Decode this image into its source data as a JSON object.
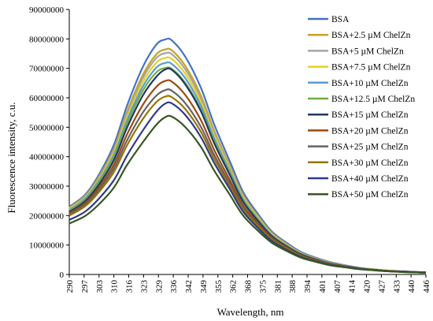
{
  "chart_data": {
    "type": "line",
    "title": "",
    "xlabel": "Wavelength, nm",
    "ylabel": "Fluorescence intensity,  c.u.",
    "ylim": [
      0,
      90000000
    ],
    "xlim": [
      290,
      450
    ],
    "y_ticks": [
      "0",
      "10000000",
      "20000000",
      "30000000",
      "40000000",
      "50000000",
      "60000000",
      "70000000",
      "80000000",
      "90000000"
    ],
    "x_ticks": [
      "290",
      "297",
      "303",
      "310",
      "316",
      "323",
      "329",
      "336",
      "342",
      "349",
      "355",
      "362",
      "368",
      "375",
      "381",
      "388",
      "394",
      "401",
      "407",
      "414",
      "420",
      "427",
      "433",
      "440",
      "446"
    ],
    "grid": false,
    "legend_position": "right",
    "x": [
      290,
      297,
      303,
      310,
      316,
      323,
      329,
      333,
      336,
      342,
      349,
      355,
      362,
      368,
      375,
      381,
      388,
      394,
      401,
      407,
      414,
      420,
      427,
      433,
      440,
      446,
      450
    ],
    "series": [
      {
        "name": "BSA",
        "color": "#4472c4",
        "values": [
          23000000,
          27000000,
          33500000,
          44000000,
          57500000,
          70500000,
          78000000,
          79800000,
          79500000,
          74000000,
          63500000,
          51000000,
          38500000,
          28000000,
          20200000,
          14500000,
          10500000,
          7600000,
          5600000,
          4200000,
          3100000,
          2300000,
          1700000,
          1300000,
          1000000,
          800000,
          700000
        ]
      },
      {
        "name": "BSA+2.5 µM ChelZn",
        "color": "#c9a227",
        "values": [
          22700000,
          26600000,
          32800000,
          42700000,
          55500000,
          67800000,
          74700000,
          76400000,
          76100000,
          70900000,
          60900000,
          48900000,
          37000000,
          27000000,
          19500000,
          14000000,
          10100000,
          7300000,
          5400000,
          4000000,
          3000000,
          2200000,
          1700000,
          1300000,
          1000000,
          800000,
          700000
        ]
      },
      {
        "name": "BSA+5 µM ChelZn",
        "color": "#a5a5a5",
        "values": [
          22400000,
          26300000,
          32300000,
          42000000,
          54600000,
          66700000,
          73500000,
          75100000,
          74800000,
          69700000,
          59900000,
          48200000,
          36500000,
          26600000,
          19200000,
          13800000,
          10000000,
          7200000,
          5300000,
          4000000,
          3000000,
          2200000,
          1700000,
          1300000,
          1000000,
          800000,
          700000
        ]
      },
      {
        "name": "BSA+7.5 µM ChelZn",
        "color": "#e5d21c",
        "values": [
          22200000,
          26000000,
          31900000,
          41300000,
          53500000,
          65300000,
          71900000,
          73500000,
          73200000,
          68200000,
          58700000,
          47200000,
          35800000,
          26100000,
          18900000,
          13600000,
          9800000,
          7100000,
          5200000,
          3900000,
          2900000,
          2200000,
          1700000,
          1300000,
          1000000,
          800000,
          700000
        ]
      },
      {
        "name": "BSA+10 µM ChelZn",
        "color": "#5b9bd5",
        "values": [
          21900000,
          25700000,
          31500000,
          40600000,
          52500000,
          63800000,
          70200000,
          71800000,
          71500000,
          66700000,
          57400000,
          46200000,
          35100000,
          25600000,
          18500000,
          13300000,
          9600000,
          7000000,
          5100000,
          3800000,
          2900000,
          2200000,
          1600000,
          1200000,
          1000000,
          800000,
          700000
        ]
      },
      {
        "name": "BSA+12.5 µM ChelZn",
        "color": "#70ad47",
        "values": [
          21600000,
          25300000,
          31000000,
          39800000,
          51400000,
          62400000,
          68600000,
          70100000,
          69800000,
          65100000,
          56100000,
          45200000,
          34300000,
          25100000,
          18200000,
          13100000,
          9500000,
          6900000,
          5000000,
          3800000,
          2800000,
          2100000,
          1600000,
          1200000,
          1000000,
          800000,
          700000
        ]
      },
      {
        "name": "BSA+15 µM ChelZn",
        "color": "#203864",
        "values": [
          21200000,
          24800000,
          30200000,
          38800000,
          50000000,
          60800000,
          67100000,
          69600000,
          69500000,
          64600000,
          55500000,
          44600000,
          33800000,
          24700000,
          17900000,
          12900000,
          9300000,
          6800000,
          5000000,
          3700000,
          2800000,
          2100000,
          1600000,
          1200000,
          1000000,
          800000,
          700000
        ]
      },
      {
        "name": "BSA+20 µM ChelZn",
        "color": "#9e480e",
        "values": [
          20800000,
          24200000,
          29300000,
          37300000,
          47700000,
          57600000,
          63700000,
          65700000,
          65500000,
          61000000,
          52500000,
          42300000,
          32100000,
          23500000,
          17100000,
          12400000,
          9000000,
          6500000,
          4800000,
          3600000,
          2700000,
          2000000,
          1500000,
          1200000,
          900000,
          700000,
          600000
        ]
      },
      {
        "name": "BSA+25 µM ChelZn",
        "color": "#636363",
        "values": [
          20400000,
          23700000,
          28500000,
          36000000,
          45700000,
          55000000,
          60700000,
          62600000,
          62400000,
          58200000,
          50200000,
          40600000,
          30900000,
          22700000,
          16500000,
          12000000,
          8700000,
          6300000,
          4600000,
          3500000,
          2600000,
          2000000,
          1500000,
          1100000,
          900000,
          700000,
          600000
        ]
      },
      {
        "name": "BSA+30 µM ChelZn",
        "color": "#997300",
        "values": [
          20000000,
          23100000,
          27700000,
          34800000,
          44000000,
          52800000,
          58500000,
          60400000,
          60200000,
          56200000,
          48500000,
          39300000,
          30000000,
          22100000,
          16100000,
          11700000,
          8500000,
          6200000,
          4500000,
          3400000,
          2600000,
          1900000,
          1500000,
          1100000,
          900000,
          700000,
          600000
        ]
      },
      {
        "name": "BSA+40 µM ChelZn",
        "color": "#2e3a8c",
        "values": [
          18500000,
          21300000,
          25500000,
          32000000,
          40500000,
          48900000,
          55200000,
          58000000,
          58100000,
          54200000,
          46700000,
          37900000,
          29000000,
          21300000,
          15500000,
          11300000,
          8200000,
          6000000,
          4400000,
          3300000,
          2500000,
          1900000,
          1400000,
          1100000,
          900000,
          700000,
          600000
        ]
      },
      {
        "name": "BSA+50 µM ChelZn",
        "color": "#375623",
        "values": [
          17300000,
          19800000,
          23600000,
          29500000,
          37300000,
          44900000,
          50800000,
          53400000,
          53600000,
          50100000,
          43400000,
          35300000,
          27100000,
          20000000,
          14600000,
          10700000,
          7800000,
          5700000,
          4200000,
          3100000,
          2400000,
          1800000,
          1400000,
          1100000,
          800000,
          700000,
          600000
        ]
      }
    ]
  }
}
